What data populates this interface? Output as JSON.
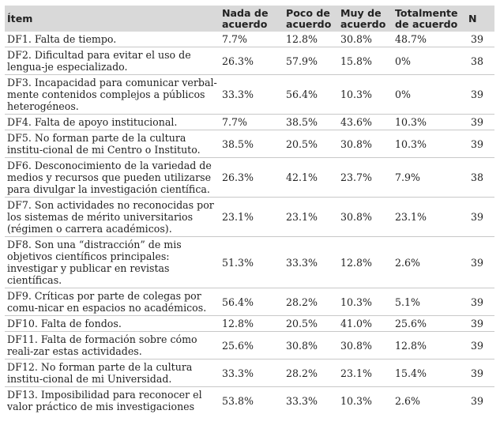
{
  "table": {
    "headers": [
      "Ítem",
      "Nada de acuerdo",
      "Poco de acuerdo",
      "Muy de acuerdo",
      "Totalmente de acuerdo",
      "N"
    ],
    "rows": [
      {
        "item": "DF1. Falta de tiempo.",
        "nada": "7.7%",
        "poco": "12.8%",
        "muy": "30.8%",
        "total": "48.7%",
        "n": "39"
      },
      {
        "item": "DF2. Dificultad para evitar el uso de lengua-je especializado.",
        "nada": "26.3%",
        "poco": "57.9%",
        "muy": "15.8%",
        "total": "0%",
        "n": "38"
      },
      {
        "item": "DF3. Incapacidad para comunicar verbal-mente contenidos complejos a públicos heterogéneos.",
        "nada": "33.3%",
        "poco": "56.4%",
        "muy": "10.3%",
        "total": "0%",
        "n": "39"
      },
      {
        "item": "DF4. Falta de apoyo institucional.",
        "nada": "7.7%",
        "poco": "38.5%",
        "muy": "43.6%",
        "total": "10.3%",
        "n": "39"
      },
      {
        "item": "DF5. No forman parte de la cultura institu-cional de mi Centro o Instituto.",
        "nada": "38.5%",
        "poco": "20.5%",
        "muy": "30.8%",
        "total": "10.3%",
        "n": "39"
      },
      {
        "item": "DF6. Desconocimiento de la variedad de medios y recursos que pueden utilizarse para divulgar la investigación científica.",
        "nada": "26.3%",
        "poco": "42.1%",
        "muy": "23.7%",
        "total": "7.9%",
        "n": "38"
      },
      {
        "item": "DF7. Son actividades no reconocidas por los sistemas de mérito universitarios (régimen o carrera académicos).",
        "nada": "23.1%",
        "poco": "23.1%",
        "muy": "30.8%",
        "total": "23.1%",
        "n": "39"
      },
      {
        "item": "DF8. Son una “distracción” de mis objetivos científicos principales: investigar y publicar en revistas científicas.",
        "nada": "51.3%",
        "poco": "33.3%",
        "muy": "12.8%",
        "total": "2.6%",
        "n": "39"
      },
      {
        "item": "DF9. Críticas por parte de colegas por comu-nicar en espacios no académicos.",
        "nada": "56.4%",
        "poco": "28.2%",
        "muy": "10.3%",
        "total": "5.1%",
        "n": "39"
      },
      {
        "item": "DF10. Falta de fondos.",
        "nada": "12.8%",
        "poco": "20.5%",
        "muy": "41.0%",
        "total": "25.6%",
        "n": "39"
      },
      {
        "item": "DF11. Falta de formación sobre cómo reali-zar estas actividades.",
        "nada": "25.6%",
        "poco": "30.8%",
        "muy": "30.8%",
        "total": "12.8%",
        "n": "39"
      },
      {
        "item": "DF12. No forman parte de la cultura institu-cional de mi Universidad.",
        "nada": "33.3%",
        "poco": "28.2%",
        "muy": "23.1%",
        "total": "15.4%",
        "n": "39"
      },
      {
        "item": "DF13. Imposibilidad para reconocer el valor práctico de mis investigaciones",
        "nada": "53.8%",
        "poco": "33.3%",
        "muy": "10.3%",
        "total": "2.6%",
        "n": "39"
      }
    ]
  }
}
